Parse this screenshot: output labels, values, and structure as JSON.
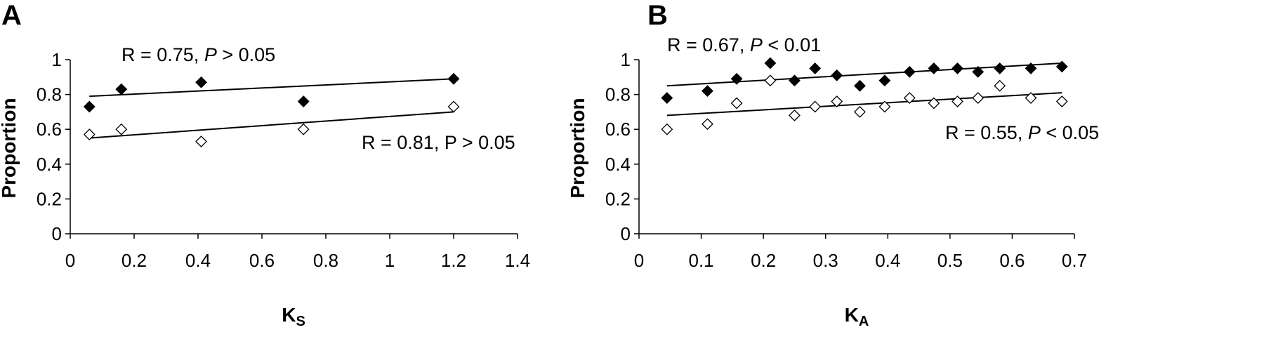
{
  "chart_data": [
    {
      "type": "scatter",
      "panel_label": "A",
      "xlabel": "K",
      "xlabel_sub": "S",
      "ylabel": "Proportion",
      "xlim": [
        0,
        1.4
      ],
      "ylim": [
        0,
        1
      ],
      "xticks": [
        "0",
        "0.2",
        "0.4",
        "0.6",
        "0.8",
        "1",
        "1.2",
        "1.4"
      ],
      "yticks": [
        "0",
        "0.2",
        "0.4",
        "0.6",
        "0.8",
        "1"
      ],
      "grid": false,
      "series": [
        {
          "marker": "filled-diamond",
          "x": [
            0.06,
            0.16,
            0.41,
            0.73,
            1.2
          ],
          "y": [
            0.73,
            0.83,
            0.87,
            0.76,
            0.89
          ],
          "trendline": [
            [
              0.06,
              0.79
            ],
            [
              1.2,
              0.89
            ]
          ],
          "annotation": {
            "pre": "R = 0.75, ",
            "italic": "P",
            "post": " > 0.05"
          }
        },
        {
          "marker": "open-diamond",
          "x": [
            0.06,
            0.16,
            0.41,
            0.73,
            1.2
          ],
          "y": [
            0.57,
            0.6,
            0.53,
            0.6,
            0.73
          ],
          "trendline": [
            [
              0.06,
              0.55
            ],
            [
              1.2,
              0.7
            ]
          ],
          "annotation": {
            "pre": "R = 0.81, ",
            "italic": "",
            "post": "P > 0.05"
          }
        }
      ]
    },
    {
      "type": "scatter",
      "panel_label": "B",
      "xlabel": "K",
      "xlabel_sub": "A",
      "ylabel": "Proportion",
      "xlim": [
        0,
        0.7
      ],
      "ylim": [
        0,
        1
      ],
      "xticks": [
        "0",
        "0.1",
        "0.2",
        "0.3",
        "0.4",
        "0.5",
        "0.6",
        "0.7"
      ],
      "yticks": [
        "0",
        "0.2",
        "0.4",
        "0.6",
        "0.8",
        "1"
      ],
      "grid": false,
      "series": [
        {
          "marker": "filled-diamond",
          "x": [
            0.045,
            0.11,
            0.157,
            0.211,
            0.25,
            0.283,
            0.318,
            0.355,
            0.395,
            0.435,
            0.474,
            0.512,
            0.545,
            0.58,
            0.63,
            0.68
          ],
          "y": [
            0.78,
            0.82,
            0.89,
            0.98,
            0.88,
            0.95,
            0.91,
            0.85,
            0.88,
            0.93,
            0.95,
            0.95,
            0.93,
            0.95,
            0.95,
            0.96
          ],
          "trendline": [
            [
              0.045,
              0.85
            ],
            [
              0.68,
              0.98
            ]
          ],
          "annotation": {
            "pre": "R = 0.67, ",
            "italic": "P",
            "post": " < 0.01"
          }
        },
        {
          "marker": "open-diamond",
          "x": [
            0.045,
            0.11,
            0.157,
            0.211,
            0.25,
            0.283,
            0.318,
            0.355,
            0.395,
            0.435,
            0.474,
            0.512,
            0.545,
            0.58,
            0.63,
            0.68
          ],
          "y": [
            0.6,
            0.63,
            0.75,
            0.88,
            0.68,
            0.73,
            0.76,
            0.7,
            0.73,
            0.78,
            0.75,
            0.76,
            0.78,
            0.85,
            0.78,
            0.76
          ],
          "trendline": [
            [
              0.045,
              0.68
            ],
            [
              0.68,
              0.81
            ]
          ],
          "annotation": {
            "pre": "R = 0.55, ",
            "italic": "P",
            "post": " < 0.05"
          }
        }
      ]
    }
  ]
}
